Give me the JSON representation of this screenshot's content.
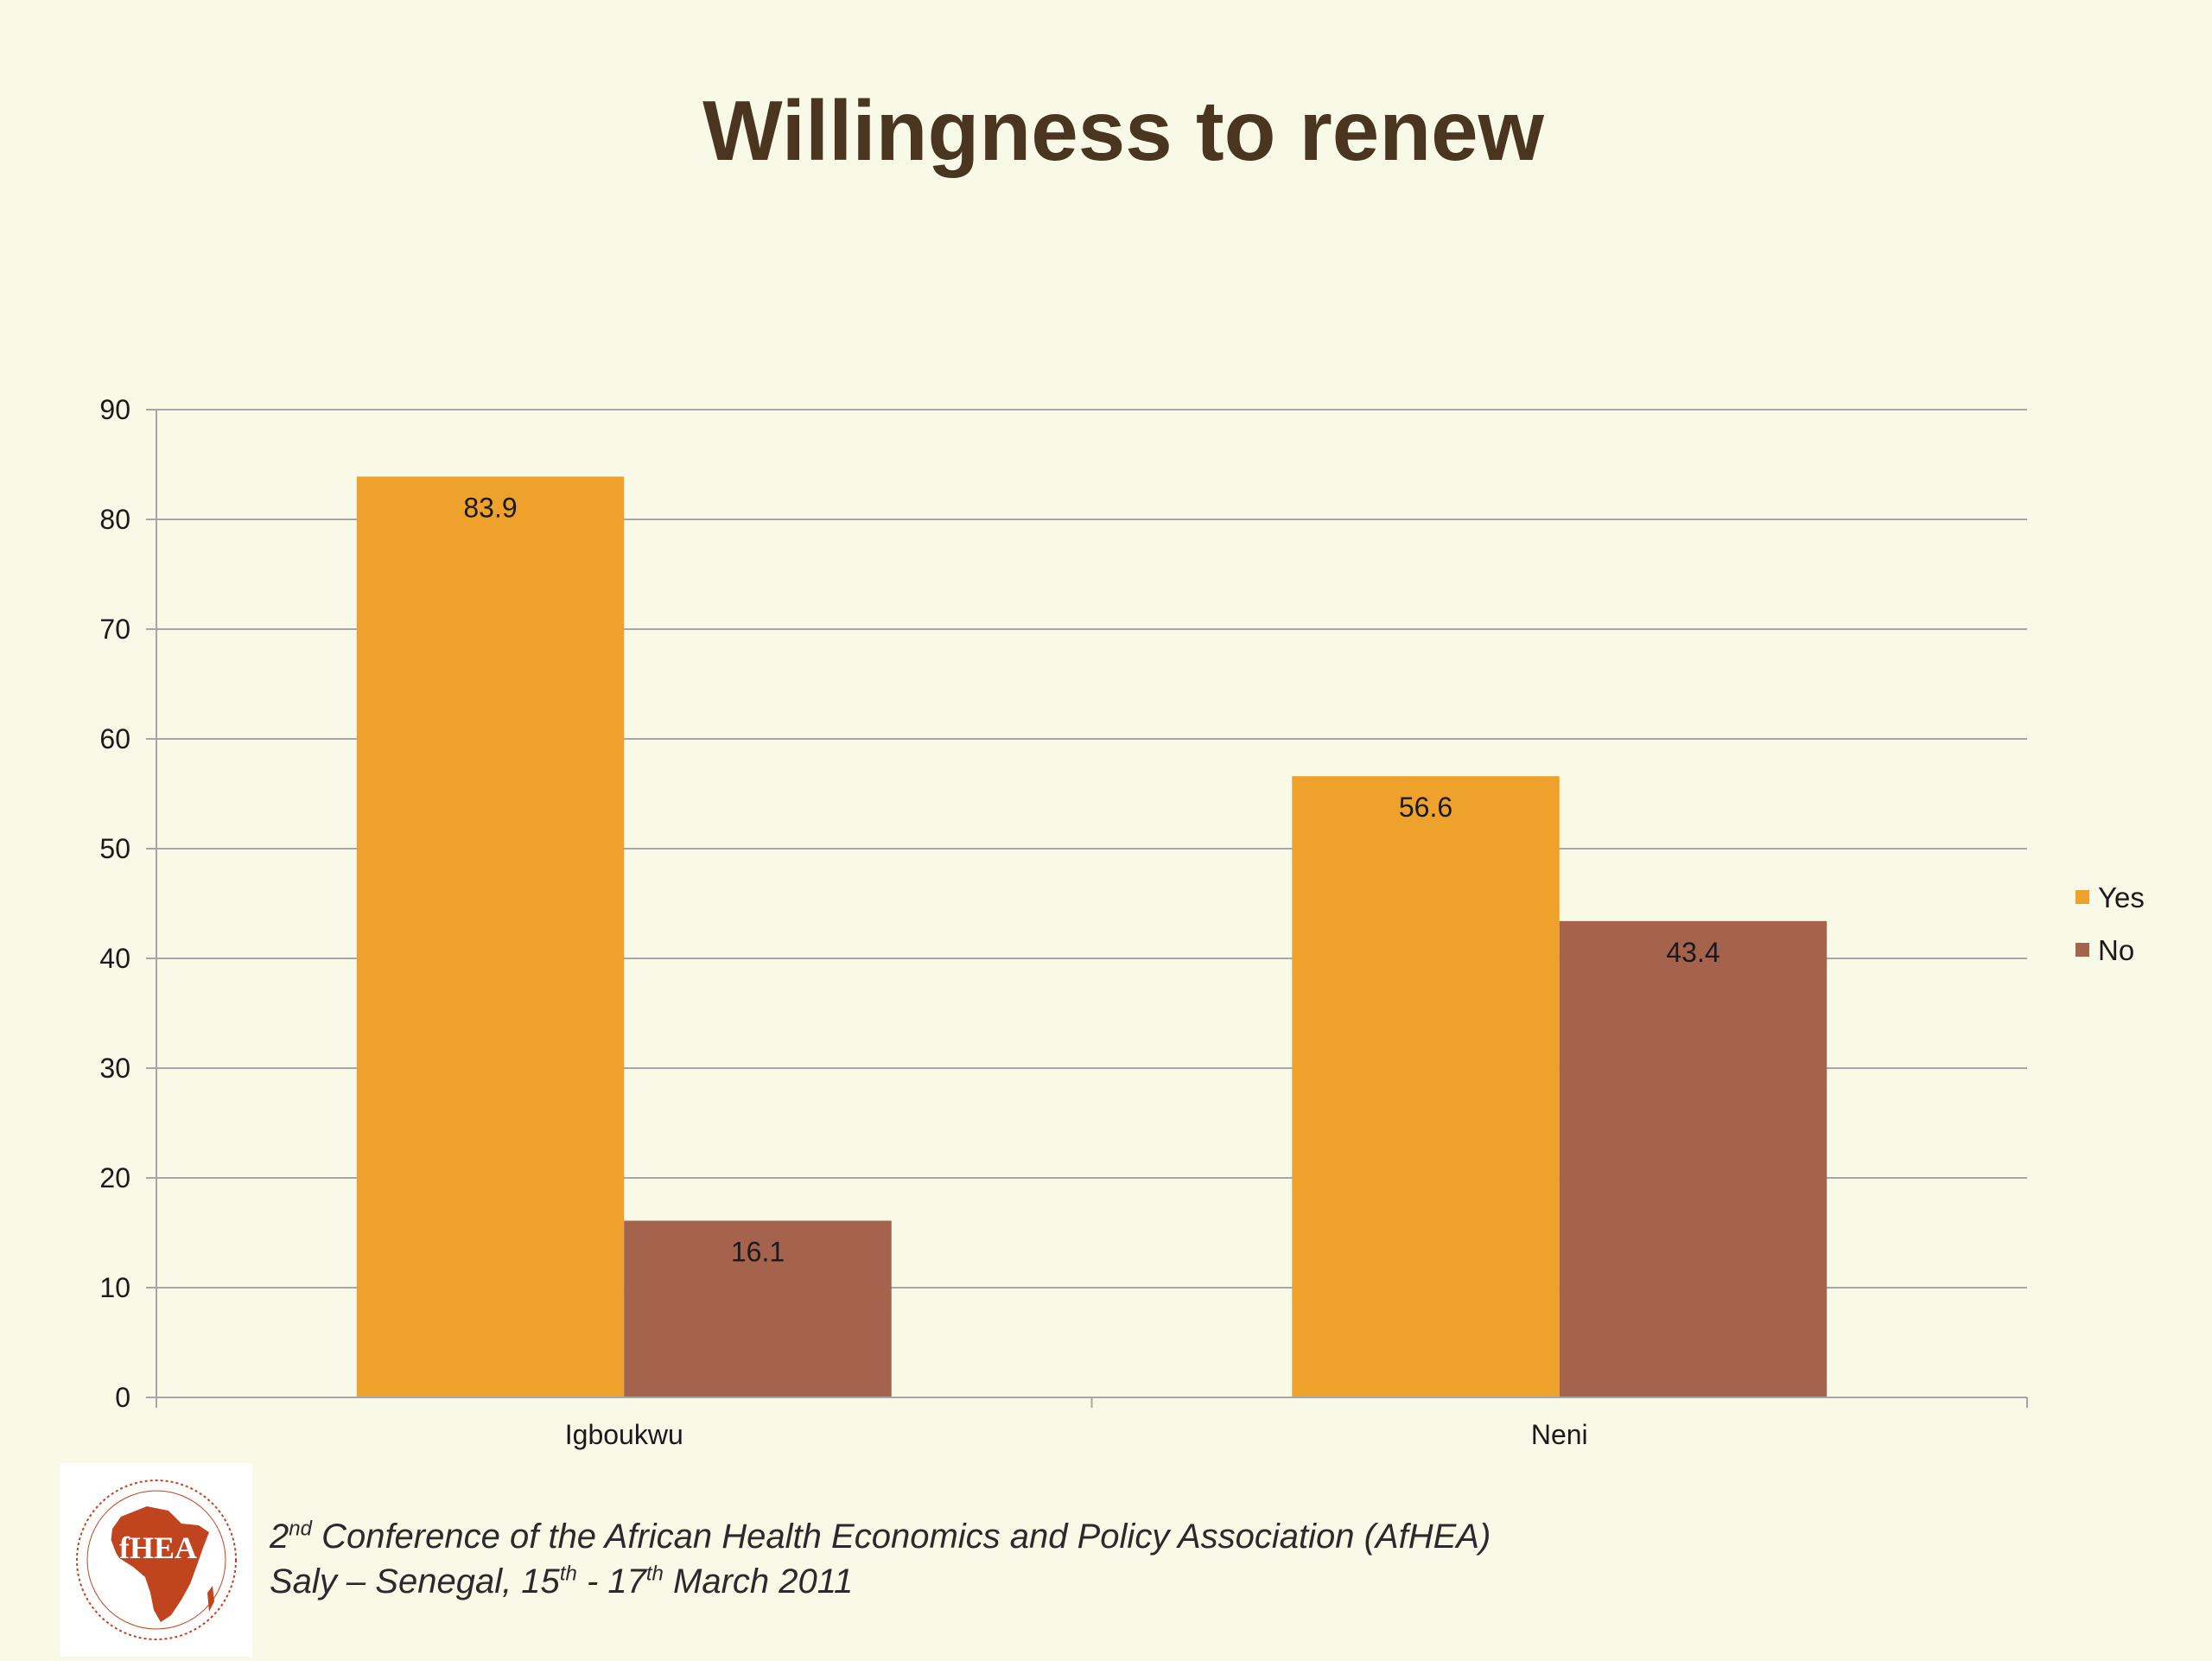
{
  "slide": {
    "title": "Willingness to renew"
  },
  "chart_data": {
    "type": "bar",
    "title": "",
    "xlabel": "",
    "ylabel": "",
    "categories": [
      "Igboukwu",
      "Neni"
    ],
    "series": [
      {
        "name": "Yes",
        "values": [
          83.9,
          56.6
        ],
        "color": "#eea22c"
      },
      {
        "name": "No",
        "values": [
          16.1,
          43.4
        ],
        "color": "#a5634e"
      }
    ],
    "data_labels": [
      [
        "83.9",
        "56.6"
      ],
      [
        "16.1",
        "43.4"
      ]
    ],
    "ylim": [
      0,
      90
    ],
    "yticks": [
      0,
      10,
      20,
      30,
      40,
      50,
      60,
      70,
      80,
      90
    ],
    "grid": true,
    "legend_position": "right"
  },
  "footer": {
    "logo_text": "AfHEA",
    "line1": {
      "ordinal_num": "2",
      "ordinal_sup": "nd",
      "rest": " Conference of the African Health Economics and Policy Association (AfHEA)"
    },
    "line2": {
      "part1": "Saly – Senegal, 15",
      "sup1": "th",
      "part2": " - 17",
      "sup2": "th",
      "part3": " March 2011"
    }
  },
  "colors": {
    "background": "#f8f9e6",
    "title": "#4a3520",
    "gridline": "#a6a6a6",
    "logo_red": "#c0441e"
  }
}
